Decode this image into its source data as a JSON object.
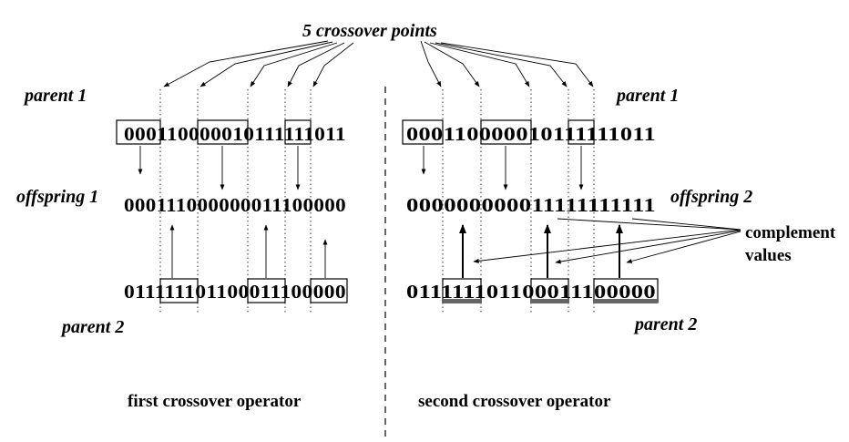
{
  "title": "5 crossover points",
  "left_panel": {
    "parent1_label": "parent 1",
    "parent1_bits": "000110000010111111011",
    "offspring_label": "offspring 1",
    "offspring_bits": "000111000000011100000",
    "parent2_label": "parent 2",
    "parent2_bits": "011111101100011100000",
    "caption": "first crossover operator"
  },
  "right_panel": {
    "parent1_label": "parent 1",
    "parent1_bits": "000110000010111111011",
    "offspring_label": "offspring 2",
    "offspring_bits": "000000000011111111111",
    "parent2_label": "parent 2",
    "parent2_bits": "011111101100011100000",
    "complement_line1": "complement",
    "complement_line2": "values",
    "caption": "second crossover operator"
  }
}
